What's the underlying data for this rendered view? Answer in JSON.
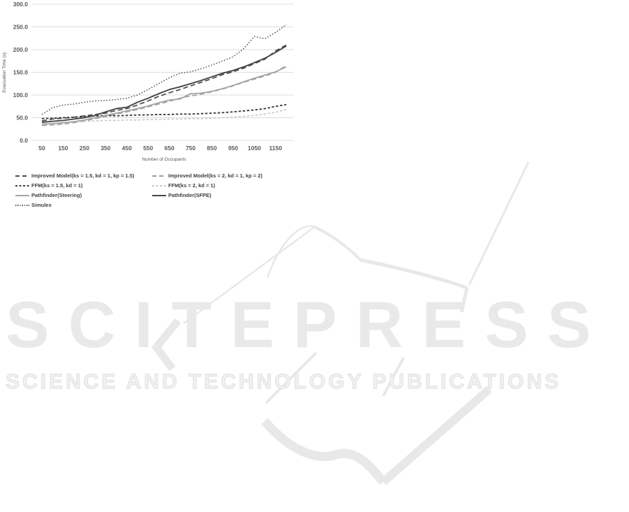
{
  "watermark": {
    "brand": "SCITEPRESS",
    "tagline": "SCIENCE AND TECHNOLOGY PUBLICATIONS",
    "color": "#e9e9e9"
  },
  "chart_data": {
    "type": "line",
    "title": "",
    "xlabel": "Number of Occupants",
    "ylabel": "Evacuation Time (s).",
    "grid": true,
    "legend_position": "below",
    "legend_columns": 2,
    "xlim": [
      50,
      1200
    ],
    "ylim": [
      0,
      300
    ],
    "x": [
      50,
      100,
      150,
      200,
      250,
      300,
      350,
      400,
      450,
      500,
      550,
      600,
      650,
      700,
      750,
      800,
      850,
      900,
      950,
      1000,
      1050,
      1100,
      1150,
      1200
    ],
    "x_tick_values": [
      50,
      150,
      250,
      350,
      450,
      550,
      650,
      750,
      850,
      950,
      1050,
      1150
    ],
    "x_tick_labels": [
      "50",
      "150",
      "250",
      "350",
      "450",
      "550",
      "650",
      "750",
      "850",
      "950",
      "1050",
      "1150"
    ],
    "y_tick_values": [
      0,
      50,
      100,
      150,
      200,
      250,
      300
    ],
    "y_tick_labels": [
      "0.0",
      "50.0",
      "100.0",
      "150.0",
      "200.0",
      "250.0",
      "300.0"
    ],
    "axis_text_color": "#595959",
    "gridline_color": "#dcdcdc",
    "series": [
      {
        "name": "Improved Model(ks = 1.5, kd = 1, kp = 1.5)",
        "color": "#4a4a4a",
        "dash": "long",
        "width": 1.7,
        "values": [
          43,
          47,
          49,
          51,
          54,
          57,
          60,
          66,
          70,
          78,
          87,
          97,
          105,
          112,
          120,
          128,
          136,
          145,
          151,
          159,
          169,
          179,
          197,
          210
        ]
      },
      {
        "name": "Improved Model(ks = 2, kd = 1, kp = 2)",
        "color": "#9b9b9b",
        "dash": "long",
        "width": 1.6,
        "values": [
          33,
          34,
          36,
          39,
          43,
          48,
          53,
          58,
          63,
          68,
          74,
          80,
          86,
          93,
          98,
          102,
          107,
          113,
          120,
          128,
          135,
          142,
          150,
          165
        ]
      },
      {
        "name": "FFM(ks = 1.5, kd = 1)",
        "color": "#3f3f3f",
        "dash": "short",
        "width": 1.9,
        "values": [
          48,
          49,
          50,
          51,
          53,
          54,
          55,
          54,
          55,
          56,
          56,
          57,
          57,
          58,
          58,
          59,
          60,
          61,
          63,
          65,
          67,
          70,
          75,
          79
        ]
      },
      {
        "name": "FFM(ks = 2, kd = 1)",
        "color": "#c7c7c7",
        "dash": "short",
        "width": 1.6,
        "values": [
          35,
          36,
          38,
          40,
          42,
          43,
          44,
          44,
          45,
          45,
          46,
          46,
          47,
          47,
          48,
          48,
          49,
          50,
          51,
          53,
          55,
          58,
          62,
          68
        ]
      },
      {
        "name": "Pathfinder(Steering)",
        "color": "#a4a4a4",
        "dash": "solid",
        "width": 1.8,
        "values": [
          36,
          37,
          39,
          41,
          45,
          50,
          55,
          60,
          65,
          70,
          76,
          83,
          89,
          91,
          103,
          104,
          108,
          114,
          121,
          129,
          137,
          144,
          151,
          162
        ]
      },
      {
        "name": "Pathfinder(SFPE)",
        "color": "#464646",
        "dash": "solid",
        "width": 1.9,
        "values": [
          40,
          42,
          44,
          47,
          50,
          55,
          63,
          70,
          73,
          84,
          93,
          103,
          112,
          118,
          125,
          132,
          140,
          148,
          154,
          162,
          171,
          181,
          194,
          208
        ]
      },
      {
        "name": "Simulex",
        "color": "#4a4a4a",
        "dash": "dot",
        "width": 1.4,
        "values": [
          57,
          72,
          78,
          80,
          84,
          87,
          88,
          90,
          93,
          100,
          112,
          125,
          138,
          148,
          151,
          158,
          166,
          175,
          184,
          202,
          229,
          224,
          238,
          255
        ]
      }
    ]
  }
}
